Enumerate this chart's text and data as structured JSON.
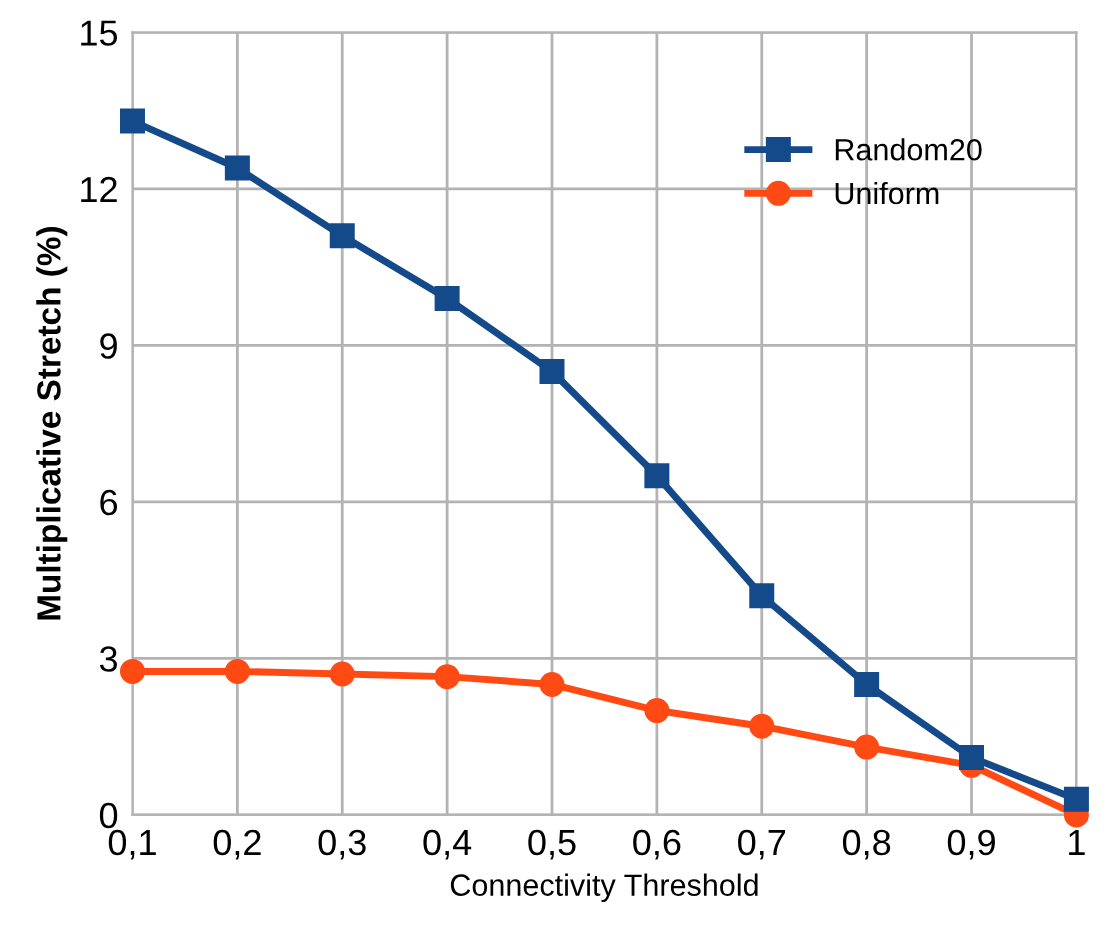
{
  "chart_data": {
    "type": "line",
    "xlabel": "Connectivity Threshold",
    "ylabel": "Multiplicative Stretch (%)",
    "x": [
      0.1,
      0.2,
      0.3,
      0.4,
      0.5,
      0.6,
      0.7,
      0.8,
      0.9,
      1.0
    ],
    "series": [
      {
        "name": "Random20",
        "color": "#154a8a",
        "marker": "square",
        "values": [
          13.3,
          12.4,
          11.1,
          9.9,
          8.5,
          6.5,
          4.2,
          2.5,
          1.1,
          0.3
        ]
      },
      {
        "name": "Uniform",
        "color": "#ff4a14",
        "marker": "circle",
        "values": [
          2.75,
          2.75,
          2.7,
          2.65,
          2.5,
          2.0,
          1.7,
          1.3,
          0.95,
          0.0
        ]
      }
    ],
    "xlim": [
      0.1,
      1.0
    ],
    "ylim": [
      0,
      15
    ],
    "xticks": [
      {
        "value": 0.1,
        "label": "0,1"
      },
      {
        "value": 0.2,
        "label": "0,2"
      },
      {
        "value": 0.3,
        "label": "0,3"
      },
      {
        "value": 0.4,
        "label": "0,4"
      },
      {
        "value": 0.5,
        "label": "0,5"
      },
      {
        "value": 0.6,
        "label": "0,6"
      },
      {
        "value": 0.7,
        "label": "0,7"
      },
      {
        "value": 0.8,
        "label": "0,8"
      },
      {
        "value": 0.9,
        "label": "0,9"
      },
      1
    ],
    "yticks": [
      0,
      3,
      6,
      9,
      12,
      15
    ],
    "grid": true,
    "legend": "top right",
    "line_style": "solid"
  }
}
